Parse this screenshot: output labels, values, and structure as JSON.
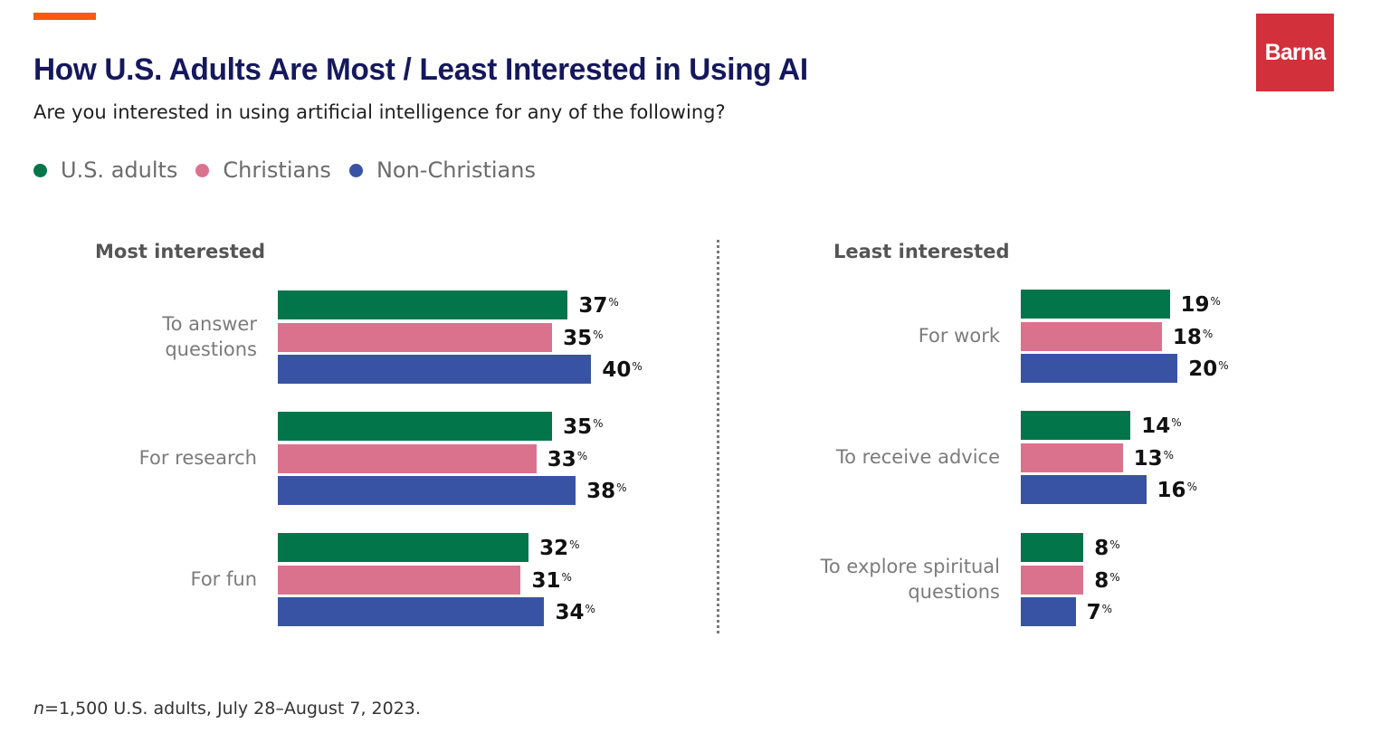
{
  "header": {
    "title": "How U.S. Adults Are Most / Least Interested in Using AI",
    "subtitle": "Are you interested in using artificial intelligence for any of the following?",
    "logo_text": "Barna"
  },
  "colors": {
    "accent": "#fa5a0a",
    "title": "#15185c",
    "logo_bg": "#d2303a",
    "us_adults": "#02754b",
    "christians": "#da728e",
    "non_christians": "#3953a4"
  },
  "legend": [
    {
      "label": "U.S. adults",
      "color": "#02754b"
    },
    {
      "label": "Christians",
      "color": "#da728e"
    },
    {
      "label": "Non-Christians",
      "color": "#3953a4"
    }
  ],
  "footnote": {
    "n_prefix": "n",
    "text": "=1,500 U.S. adults, July 28–August 7, 2023."
  },
  "chart_data": [
    {
      "type": "bar",
      "orientation": "horizontal",
      "title": "Most interested",
      "unit": "%",
      "categories": [
        "To answer questions",
        "For research",
        "For fun"
      ],
      "series": [
        {
          "name": "U.S. adults",
          "values": [
            37,
            35,
            32
          ]
        },
        {
          "name": "Christians",
          "values": [
            35,
            33,
            31
          ]
        },
        {
          "name": "Non-Christians",
          "values": [
            40,
            38,
            34
          ]
        }
      ],
      "xlim": [
        0,
        40
      ],
      "grid": false,
      "legend": "top-left"
    },
    {
      "type": "bar",
      "orientation": "horizontal",
      "title": "Least interested",
      "unit": "%",
      "categories": [
        "For work",
        "To receive advice",
        "To explore spiritual questions"
      ],
      "series": [
        {
          "name": "U.S. adults",
          "values": [
            19,
            14,
            8
          ]
        },
        {
          "name": "Christians",
          "values": [
            18,
            13,
            8
          ]
        },
        {
          "name": "Non-Christians",
          "values": [
            20,
            16,
            7
          ]
        }
      ],
      "xlim": [
        0,
        40
      ],
      "grid": false,
      "legend": "top-left"
    }
  ]
}
